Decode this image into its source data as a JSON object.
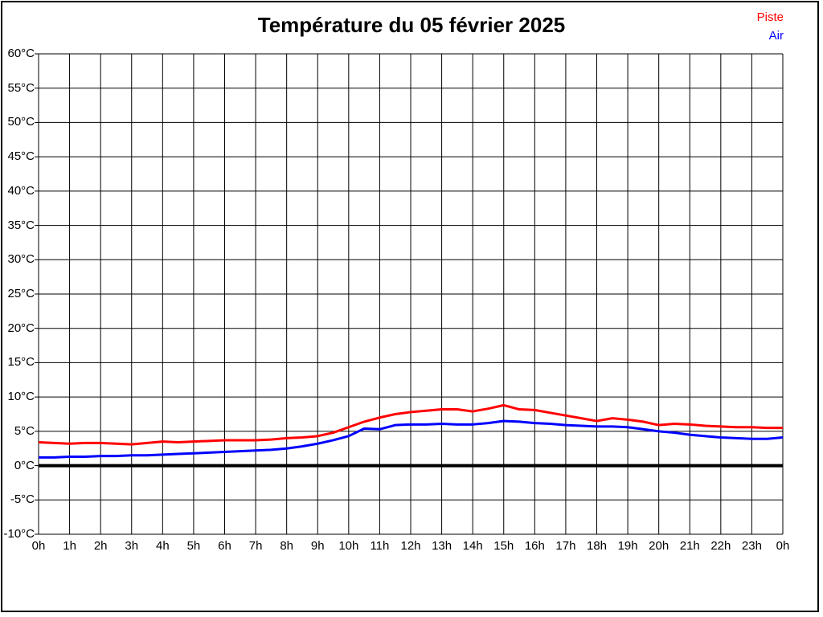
{
  "chart_data": {
    "type": "line",
    "title": "Température du 05 février 2025",
    "xlabel": "",
    "ylabel": "",
    "xlim": [
      0,
      24
    ],
    "ylim": [
      -10,
      60
    ],
    "grid": true,
    "zero_line": true,
    "legend_position": "top-right",
    "x_ticks": [
      "0h",
      "1h",
      "2h",
      "3h",
      "4h",
      "5h",
      "6h",
      "7h",
      "8h",
      "9h",
      "10h",
      "11h",
      "12h",
      "13h",
      "14h",
      "15h",
      "16h",
      "17h",
      "18h",
      "19h",
      "20h",
      "21h",
      "22h",
      "23h",
      "0h"
    ],
    "y_tick_values": [
      60,
      55,
      50,
      45,
      40,
      35,
      30,
      25,
      20,
      15,
      10,
      5,
      0,
      -5,
      -10
    ],
    "y_ticks": [
      "60°C",
      "55°C",
      "50°C",
      "45°C",
      "40°C",
      "35°C",
      "30°C",
      "25°C",
      "20°C",
      "15°C",
      "10°C",
      "5°C",
      "0°C",
      "-5°C",
      "-10°C"
    ],
    "x": [
      0,
      0.5,
      1,
      1.5,
      2,
      2.5,
      3,
      3.5,
      4,
      4.5,
      5,
      5.5,
      6,
      6.5,
      7,
      7.5,
      8,
      8.5,
      9,
      9.5,
      10,
      10.5,
      11,
      11.5,
      12,
      12.5,
      13,
      13.5,
      14,
      14.5,
      15,
      15.5,
      16,
      16.5,
      17,
      17.5,
      18,
      18.5,
      19,
      19.5,
      20,
      20.5,
      21,
      21.5,
      22,
      22.5,
      23,
      23.5,
      24
    ],
    "series": [
      {
        "name": "Piste",
        "color": "#ff0000",
        "values": [
          3.4,
          3.3,
          3.2,
          3.3,
          3.3,
          3.2,
          3.1,
          3.3,
          3.5,
          3.4,
          3.5,
          3.6,
          3.7,
          3.7,
          3.7,
          3.8,
          4.0,
          4.1,
          4.3,
          4.8,
          5.6,
          6.4,
          7.0,
          7.5,
          7.8,
          8.0,
          8.2,
          8.2,
          7.9,
          8.3,
          8.8,
          8.2,
          8.1,
          7.7,
          7.3,
          6.9,
          6.5,
          6.9,
          6.7,
          6.4,
          5.9,
          6.1,
          6.0,
          5.8,
          5.7,
          5.6,
          5.6,
          5.5,
          5.5
        ]
      },
      {
        "name": "Air",
        "color": "#0000ff",
        "values": [
          1.2,
          1.2,
          1.3,
          1.3,
          1.4,
          1.4,
          1.5,
          1.5,
          1.6,
          1.7,
          1.8,
          1.9,
          2.0,
          2.1,
          2.2,
          2.3,
          2.5,
          2.8,
          3.2,
          3.7,
          4.3,
          5.4,
          5.3,
          5.9,
          6.0,
          6.0,
          6.1,
          6.0,
          6.0,
          6.2,
          6.5,
          6.4,
          6.2,
          6.1,
          5.9,
          5.8,
          5.7,
          5.7,
          5.6,
          5.3,
          5.0,
          4.8,
          4.5,
          4.3,
          4.1,
          4.0,
          3.9,
          3.9,
          4.1
        ]
      }
    ]
  },
  "colors": {
    "grid": "#000000",
    "zero_line": "#000000",
    "frame": "#000000",
    "background": "#ffffff"
  }
}
